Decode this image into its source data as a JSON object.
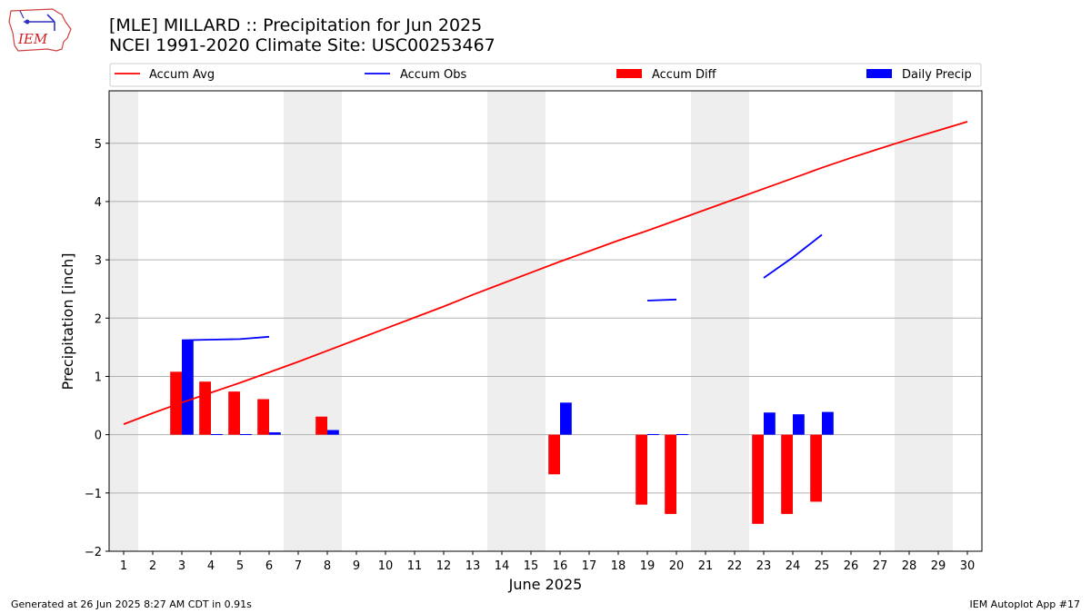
{
  "header": {
    "title_line1": "[MLE] MILLARD :: Precipitation for Jun 2025",
    "title_line2": "NCEI 1991-2020 Climate Site: USC00253467"
  },
  "logo": {
    "text": "IEM",
    "icon": "iem-iowa-logo"
  },
  "footer": {
    "generated": "Generated at 26 Jun 2025 8:27 AM CDT in 0.91s",
    "app": "IEM Autoplot App #17"
  },
  "colors": {
    "accum_avg": "#ff0000",
    "accum_obs": "#0000ff",
    "accum_diff": "#ff0000",
    "daily_precip": "#0000ff",
    "weekend_shade": "#eeeeee",
    "grid": "#b0b0b0"
  },
  "chart_data": {
    "type": "bar",
    "title": "[MLE] MILLARD :: Precipitation for Jun 2025",
    "subtitle": "NCEI 1991-2020 Climate Site: USC00253467",
    "xlabel": "June 2025",
    "ylabel": "Precipitation [inch]",
    "xlim": [
      0.5,
      30.5
    ],
    "ylim": [
      -2.0,
      5.9
    ],
    "x_ticks": [
      "1",
      "2",
      "3",
      "4",
      "5",
      "6",
      "7",
      "8",
      "9",
      "10",
      "11",
      "12",
      "13",
      "14",
      "15",
      "16",
      "17",
      "18",
      "19",
      "20",
      "21",
      "22",
      "23",
      "24",
      "25",
      "26",
      "27",
      "28",
      "29",
      "30"
    ],
    "y_ticks": [
      -2,
      -1,
      0,
      1,
      2,
      3,
      4,
      5
    ],
    "y_tick_labels": [
      "−2",
      "−1",
      "0",
      "1",
      "2",
      "3",
      "4",
      "5"
    ],
    "grid": "y",
    "legend_position": "top",
    "legend": [
      "Accum Avg",
      "Accum Obs",
      "Accum Diff",
      "Daily Precip"
    ],
    "weekends": [
      [
        0.5,
        1.5
      ],
      [
        6.5,
        8.5
      ],
      [
        13.5,
        15.5
      ],
      [
        20.5,
        22.5
      ],
      [
        27.5,
        29.5
      ]
    ],
    "series": [
      {
        "name": "Accum Avg",
        "type": "line",
        "x": [
          1,
          2,
          3,
          4,
          5,
          6,
          7,
          8,
          9,
          10,
          11,
          12,
          13,
          14,
          15,
          16,
          17,
          18,
          19,
          20,
          21,
          22,
          23,
          24,
          25,
          26,
          27,
          28,
          29,
          30
        ],
        "values": [
          0.18,
          0.37,
          0.55,
          0.72,
          0.89,
          1.07,
          1.25,
          1.44,
          1.63,
          1.82,
          2.01,
          2.2,
          2.4,
          2.59,
          2.78,
          2.97,
          3.15,
          3.33,
          3.5,
          3.68,
          3.86,
          4.04,
          4.22,
          4.4,
          4.58,
          4.75,
          4.91,
          5.07,
          5.22,
          5.37
        ]
      },
      {
        "name": "Accum Obs",
        "type": "line",
        "x": [
          3,
          4,
          5,
          6,
          7,
          8,
          9,
          10,
          11,
          12,
          13,
          14,
          15,
          16,
          17,
          18,
          19,
          20,
          21,
          22,
          23,
          24,
          25
        ],
        "values": [
          1.62,
          1.63,
          1.64,
          1.68,
          null,
          null,
          null,
          null,
          null,
          null,
          null,
          null,
          null,
          null,
          null,
          null,
          2.3,
          2.32,
          null,
          null,
          2.69,
          3.04,
          3.43
        ]
      },
      {
        "name": "Accum Diff",
        "type": "bar",
        "x": [
          3,
          4,
          5,
          6,
          8,
          16,
          19,
          20,
          23,
          24,
          25
        ],
        "values": [
          1.08,
          0.91,
          0.74,
          0.61,
          0.31,
          -0.68,
          -1.2,
          -1.36,
          -1.53,
          -1.36,
          -1.15
        ]
      },
      {
        "name": "Daily Precip",
        "type": "bar",
        "x": [
          3,
          4,
          5,
          6,
          8,
          16,
          19,
          20,
          23,
          24,
          25
        ],
        "values": [
          1.62,
          0.01,
          0.01,
          0.04,
          0.08,
          0.55,
          0.01,
          0.01,
          0.38,
          0.35,
          0.39
        ]
      }
    ]
  }
}
